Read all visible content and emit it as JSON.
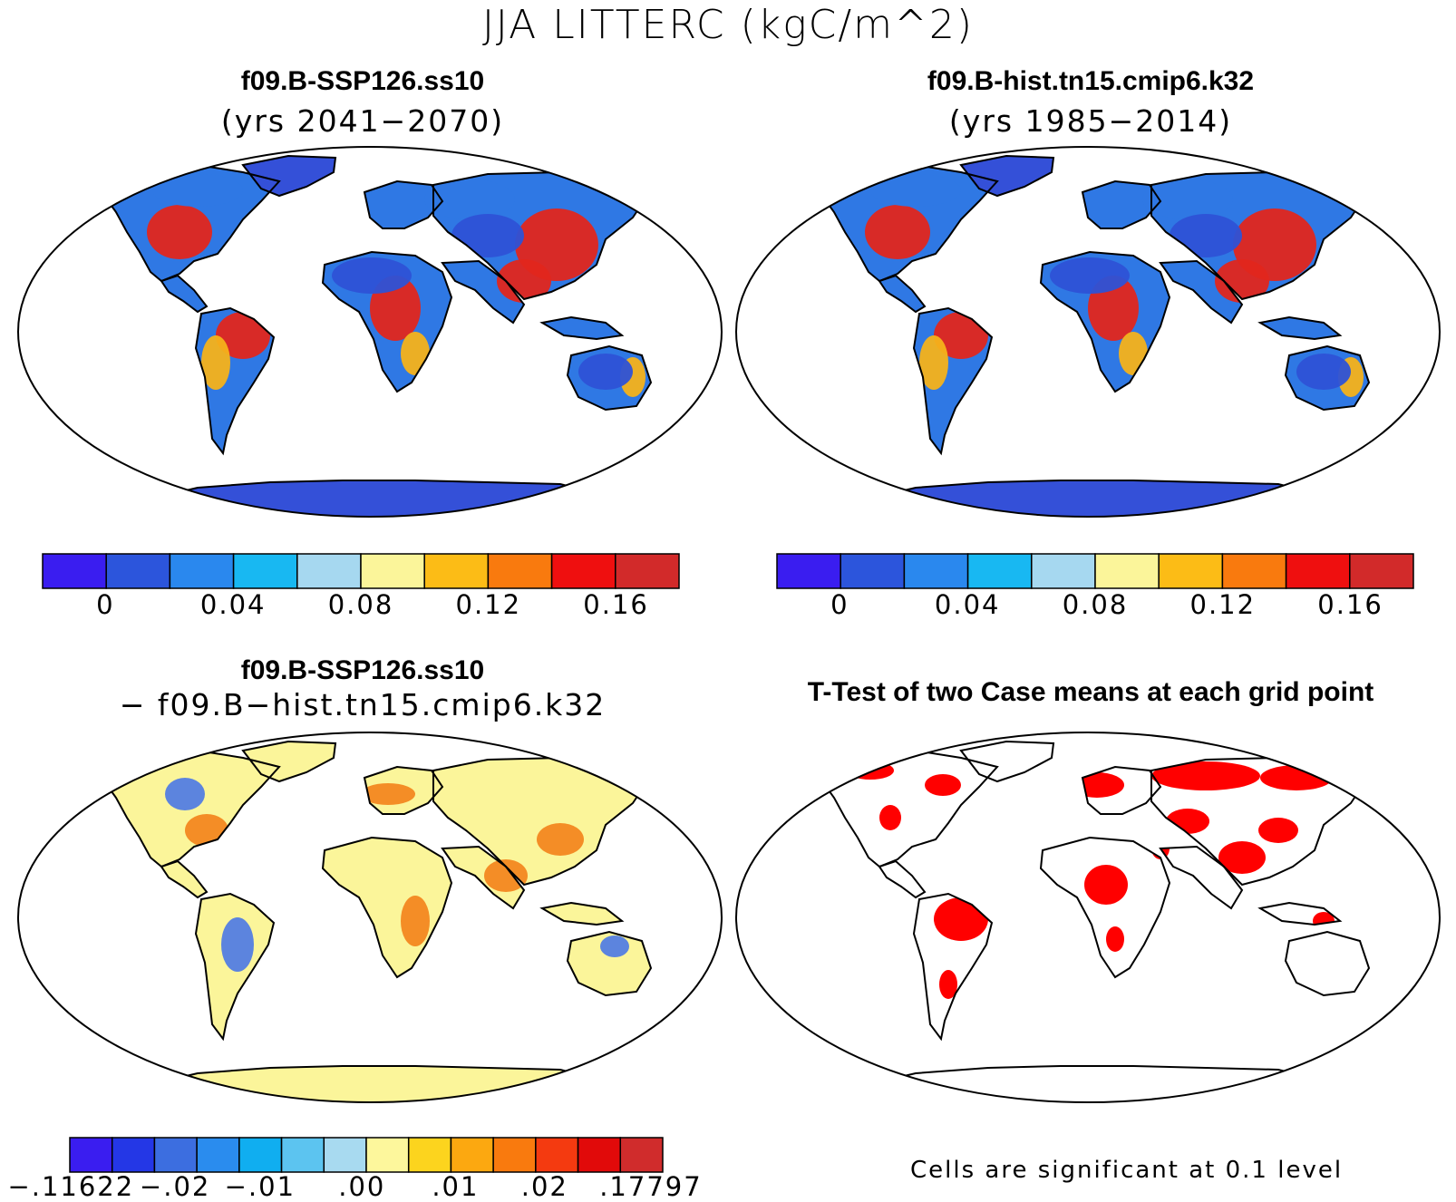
{
  "figure": {
    "title": "JJA LITTERC (kgC/m^2)"
  },
  "panels": [
    {
      "id": "top-left",
      "title": "f09.B-SSP126.ss10",
      "subtitle": "(yrs 2041−2070)",
      "kind": "field"
    },
    {
      "id": "top-right",
      "title": "f09.B-hist.tn15.cmip6.k32",
      "subtitle": "(yrs 1985−2014)",
      "kind": "field"
    },
    {
      "id": "bottom-left",
      "title": "f09.B-SSP126.ss10",
      "subtitle": "− f09.B−hist.tn15.cmip6.k32",
      "kind": "difference"
    },
    {
      "id": "bottom-right",
      "title": "T-Test of two Case means at each grid point",
      "kind": "significance",
      "note": "Cells are significant at 0.1 level",
      "significant_color": "#ff0000"
    }
  ],
  "colorbars": {
    "field": {
      "colors": [
        "#3a1df0",
        "#2c55dc",
        "#2a88ee",
        "#18b8f2",
        "#a6d8f0",
        "#fbf59a",
        "#fcbc16",
        "#f97a0e",
        "#ef0f0f",
        "#d22a2a"
      ],
      "tick_labels": [
        "0",
        "0.04",
        "0.08",
        "0.12",
        "0.16"
      ]
    },
    "difference": {
      "colors": [
        "#3a1df0",
        "#2437e6",
        "#3c6ee0",
        "#2a8cee",
        "#10aef0",
        "#5cc4f0",
        "#a8daf0",
        "#fdf79c",
        "#fcd41e",
        "#fca810",
        "#f97a0e",
        "#f43a10",
        "#e10a0a",
        "#d02c2c"
      ],
      "tick_labels": [
        ".11622",
        "−.02",
        "−.01",
        ".00",
        ".01",
        ".02",
        ".17797"
      ],
      "first_label_prefix": "−"
    }
  },
  "map_colors": {
    "ocean": "#ffffff",
    "coast": "#000000",
    "antarctica_field": "#3450d8",
    "antarctica_difference": "#fbf59a",
    "greenland_field": "#3450d8",
    "greenland_difference": "#fbf59a",
    "sahara_field": "#2e52d6",
    "tropics_field": "#e2261c",
    "temperate_field": "#f5b21a",
    "boreal_field": "#2f78e4",
    "diff_base": "#fbf59a",
    "diff_pos": "#f3821a",
    "diff_neg": "#4a78e6"
  }
}
